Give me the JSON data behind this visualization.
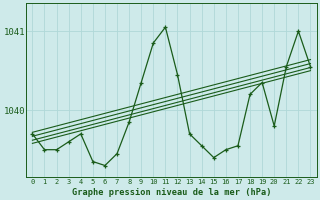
{
  "title": "Graphe pression niveau de la mer (hPa)",
  "background_color": "#ceeaea",
  "grid_color": "#b0d8d8",
  "line_color": "#1a5c1a",
  "x_values": [
    0,
    1,
    2,
    3,
    4,
    5,
    6,
    7,
    8,
    9,
    10,
    11,
    12,
    13,
    14,
    15,
    16,
    17,
    18,
    19,
    20,
    21,
    22,
    23
  ],
  "y_main": [
    1039.7,
    1039.5,
    1039.5,
    1039.6,
    1039.7,
    1039.35,
    1039.3,
    1039.45,
    1039.85,
    1040.35,
    1040.85,
    1041.05,
    1040.45,
    1039.7,
    1039.55,
    1039.4,
    1039.5,
    1039.55,
    1040.2,
    1040.35,
    1039.8,
    1040.55,
    1041.0,
    1040.55
  ],
  "trend_lines": [
    [
      [
        0,
        23
      ],
      [
        1039.58,
        1040.5
      ]
    ],
    [
      [
        0,
        23
      ],
      [
        1039.62,
        1040.54
      ]
    ],
    [
      [
        0,
        23
      ],
      [
        1039.67,
        1040.59
      ]
    ],
    [
      [
        0,
        23
      ],
      [
        1039.72,
        1040.64
      ]
    ]
  ],
  "ylim": [
    1039.15,
    1041.35
  ],
  "yticks": [
    1040,
    1041
  ],
  "xlim": [
    -0.5,
    23.5
  ]
}
